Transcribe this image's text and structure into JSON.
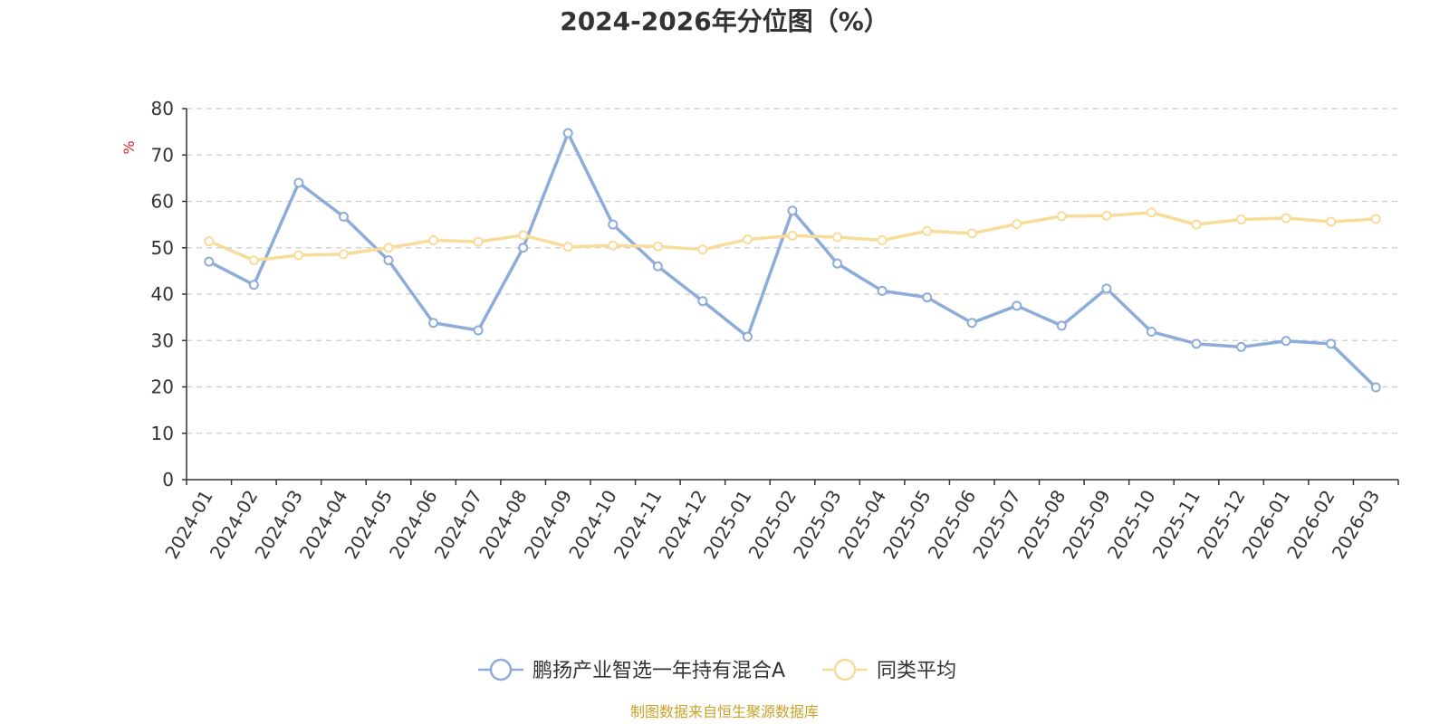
{
  "chart_data": {
    "type": "line",
    "title": "2024-2026年分位图（%）",
    "ylabel": "%",
    "ylim": [
      0,
      80
    ],
    "yticks": [
      0,
      10,
      20,
      30,
      40,
      50,
      60,
      70,
      80
    ],
    "grid": true,
    "legend_position": "bottom-center",
    "categories": [
      "2024-01",
      "2024-02",
      "2024-03",
      "2024-04",
      "2024-05",
      "2024-06",
      "2024-07",
      "2024-08",
      "2024-09",
      "2024-10",
      "2024-11",
      "2024-12",
      "2025-01",
      "2025-02",
      "2025-03",
      "2025-04",
      "2025-05",
      "2025-06",
      "2025-07",
      "2025-08",
      "2025-09",
      "2025-10",
      "2025-11",
      "2025-12",
      "2026-01",
      "2026-02",
      "2026-03"
    ],
    "series": [
      {
        "name": "鹏扬产业智选一年持有混合A",
        "color": "#8eacd9",
        "values": [
          47.0,
          42.0,
          64.0,
          56.7,
          47.3,
          33.8,
          32.2,
          50.0,
          74.7,
          55.0,
          46.0,
          38.5,
          30.8,
          58.0,
          46.6,
          40.7,
          39.3,
          33.8,
          37.5,
          33.2,
          41.2,
          31.9,
          29.3,
          28.6,
          29.9,
          29.3,
          19.9
        ]
      },
      {
        "name": "同类平均",
        "color": "#f8dc9a",
        "values": [
          51.4,
          47.3,
          48.4,
          48.6,
          50.0,
          51.6,
          51.3,
          52.7,
          50.2,
          50.5,
          50.3,
          49.6,
          51.8,
          52.6,
          52.3,
          51.6,
          53.6,
          53.1,
          55.1,
          56.8,
          56.9,
          57.6,
          55.0,
          56.1,
          56.4,
          55.6,
          56.2
        ]
      }
    ]
  },
  "source_note": "制图数据来自恒生聚源数据库"
}
